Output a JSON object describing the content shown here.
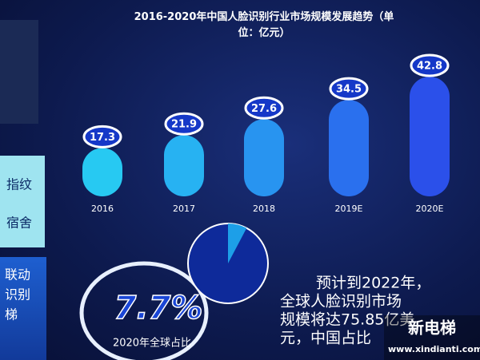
{
  "chart_data": [
    {
      "type": "bar",
      "title": "2016-2020年中国人脸识别行业市场规模发展趋势（单位：亿元）",
      "categories": [
        "2016",
        "2017",
        "2018",
        "2019E",
        "2020E"
      ],
      "values": [
        17.3,
        21.9,
        27.6,
        34.5,
        42.8
      ],
      "colors": [
        "#27c9f2",
        "#27b2f2",
        "#2894f0",
        "#2a70ee",
        "#2b50ea"
      ]
    },
    {
      "type": "pie",
      "title": "2020年全球占比",
      "values": [
        7.7
      ],
      "value_labels": [
        "7.7%"
      ],
      "color": "#1d9fe8"
    }
  ],
  "slide": {
    "note": [
      "预计到2022年，",
      "全球人脸识别市场",
      "规模将达75.85亿美",
      "元，中国占比"
    ],
    "side_texts": [
      "指纹",
      "宿舍",
      "联动",
      "识别",
      "梯"
    ],
    "watermark": {
      "brand": "新电梯",
      "url": "www.xindianti.com"
    }
  }
}
